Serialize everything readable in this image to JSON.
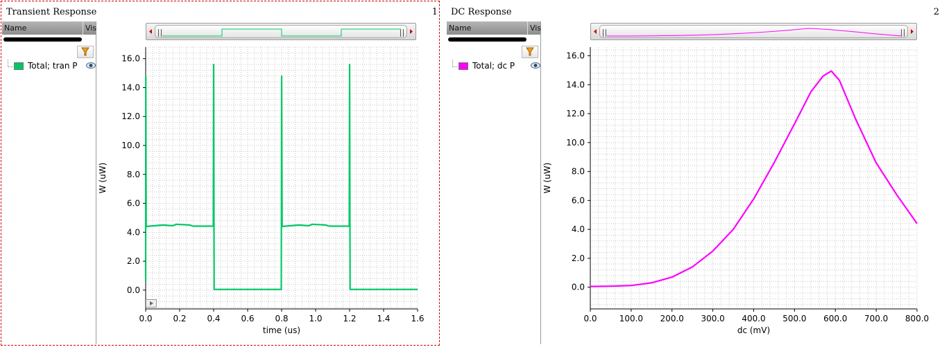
{
  "panels": {
    "tran": {
      "title": "Transient Response",
      "number": "1",
      "legend_header": {
        "name": "Name",
        "vis": "Vis"
      },
      "legend_item": {
        "label": "Total; tran P",
        "color": "#00c864"
      }
    },
    "dc": {
      "title": "DC Response",
      "number": "2",
      "legend_header": {
        "name": "Name",
        "vis": "Vis"
      },
      "legend_item": {
        "label": "Total; dc P",
        "color": "#ff00ff"
      }
    }
  },
  "icons": {
    "filter": "filter-icon",
    "visibility": "eye-icon",
    "scroll_left": "arrow-left-icon",
    "scroll_right": "arrow-right-icon",
    "play": "play-icon"
  },
  "colors": {
    "selection_border": "#cc0000",
    "tran_trace": "#00c864",
    "dc_trace": "#ff00ff",
    "grid": "#c8c8c8"
  },
  "chart_data": [
    {
      "type": "line",
      "xlabel": "time (us)",
      "ylabel": "W (uW)",
      "xlim": [
        0,
        1.6
      ],
      "ylim": [
        -1.3,
        16.8
      ],
      "x_ticks": [
        0.0,
        0.2,
        0.4,
        0.6,
        0.8,
        1.0,
        1.2,
        1.4,
        1.6
      ],
      "x_tick_labels": [
        "0.0",
        "0.2",
        "0.4",
        "0.6",
        "0.8",
        "1.0",
        "1.2",
        "1.4",
        "1.6"
      ],
      "y_ticks": [
        0,
        2,
        4,
        6,
        8,
        10,
        12,
        14,
        16
      ],
      "y_tick_labels": [
        "0.0",
        "2.0",
        "4.0",
        "6.0",
        "8.0",
        "10.0",
        "12.0",
        "14.0",
        "16.0"
      ],
      "grid": true,
      "series": [
        {
          "name": "Total; tran P",
          "color": "#00c864",
          "points": [
            [
              0,
              0.6
            ],
            [
              0.001,
              14.8
            ],
            [
              0.003,
              4.4
            ],
            [
              0.1,
              4.5
            ],
            [
              0.16,
              4.45
            ],
            [
              0.18,
              4.55
            ],
            [
              0.26,
              4.5
            ],
            [
              0.28,
              4.42
            ],
            [
              0.398,
              4.42
            ],
            [
              0.4,
              15.6
            ],
            [
              0.403,
              0.05
            ],
            [
              0.6,
              0.05
            ],
            [
              0.798,
              0.05
            ],
            [
              0.8,
              14.8
            ],
            [
              0.803,
              4.4
            ],
            [
              0.9,
              4.5
            ],
            [
              0.96,
              4.45
            ],
            [
              0.98,
              4.55
            ],
            [
              1.06,
              4.5
            ],
            [
              1.08,
              4.42
            ],
            [
              1.198,
              4.42
            ],
            [
              1.2,
              15.6
            ],
            [
              1.203,
              0.05
            ],
            [
              1.6,
              0.05
            ]
          ]
        }
      ]
    },
    {
      "type": "line",
      "xlabel": "dc (mV)",
      "ylabel": "W (uW)",
      "xlim": [
        0,
        800
      ],
      "ylim": [
        -1.5,
        16.6
      ],
      "x_ticks": [
        0,
        100,
        200,
        300,
        400,
        500,
        600,
        700,
        800
      ],
      "x_tick_labels": [
        "0.0",
        "100.0",
        "200.0",
        "300.0",
        "400.0",
        "500.0",
        "600.0",
        "700.0",
        "800.0"
      ],
      "y_ticks": [
        0,
        2,
        4,
        6,
        8,
        10,
        12,
        14,
        16
      ],
      "y_tick_labels": [
        "0.0",
        "2.0",
        "4.0",
        "6.0",
        "8.0",
        "10.0",
        "12.0",
        "14.0",
        "16.0"
      ],
      "grid": true,
      "series": [
        {
          "name": "Total; dc P",
          "color": "#ff00ff",
          "points": [
            [
              0,
              0.05
            ],
            [
              50,
              0.07
            ],
            [
              100,
              0.12
            ],
            [
              150,
              0.3
            ],
            [
              200,
              0.7
            ],
            [
              250,
              1.4
            ],
            [
              300,
              2.5
            ],
            [
              350,
              4.0
            ],
            [
              400,
              6.1
            ],
            [
              450,
              8.6
            ],
            [
              500,
              11.3
            ],
            [
              540,
              13.5
            ],
            [
              570,
              14.6
            ],
            [
              590,
              14.95
            ],
            [
              610,
              14.3
            ],
            [
              650,
              11.6
            ],
            [
              700,
              8.6
            ],
            [
              750,
              6.4
            ],
            [
              800,
              4.4
            ]
          ]
        }
      ]
    }
  ]
}
